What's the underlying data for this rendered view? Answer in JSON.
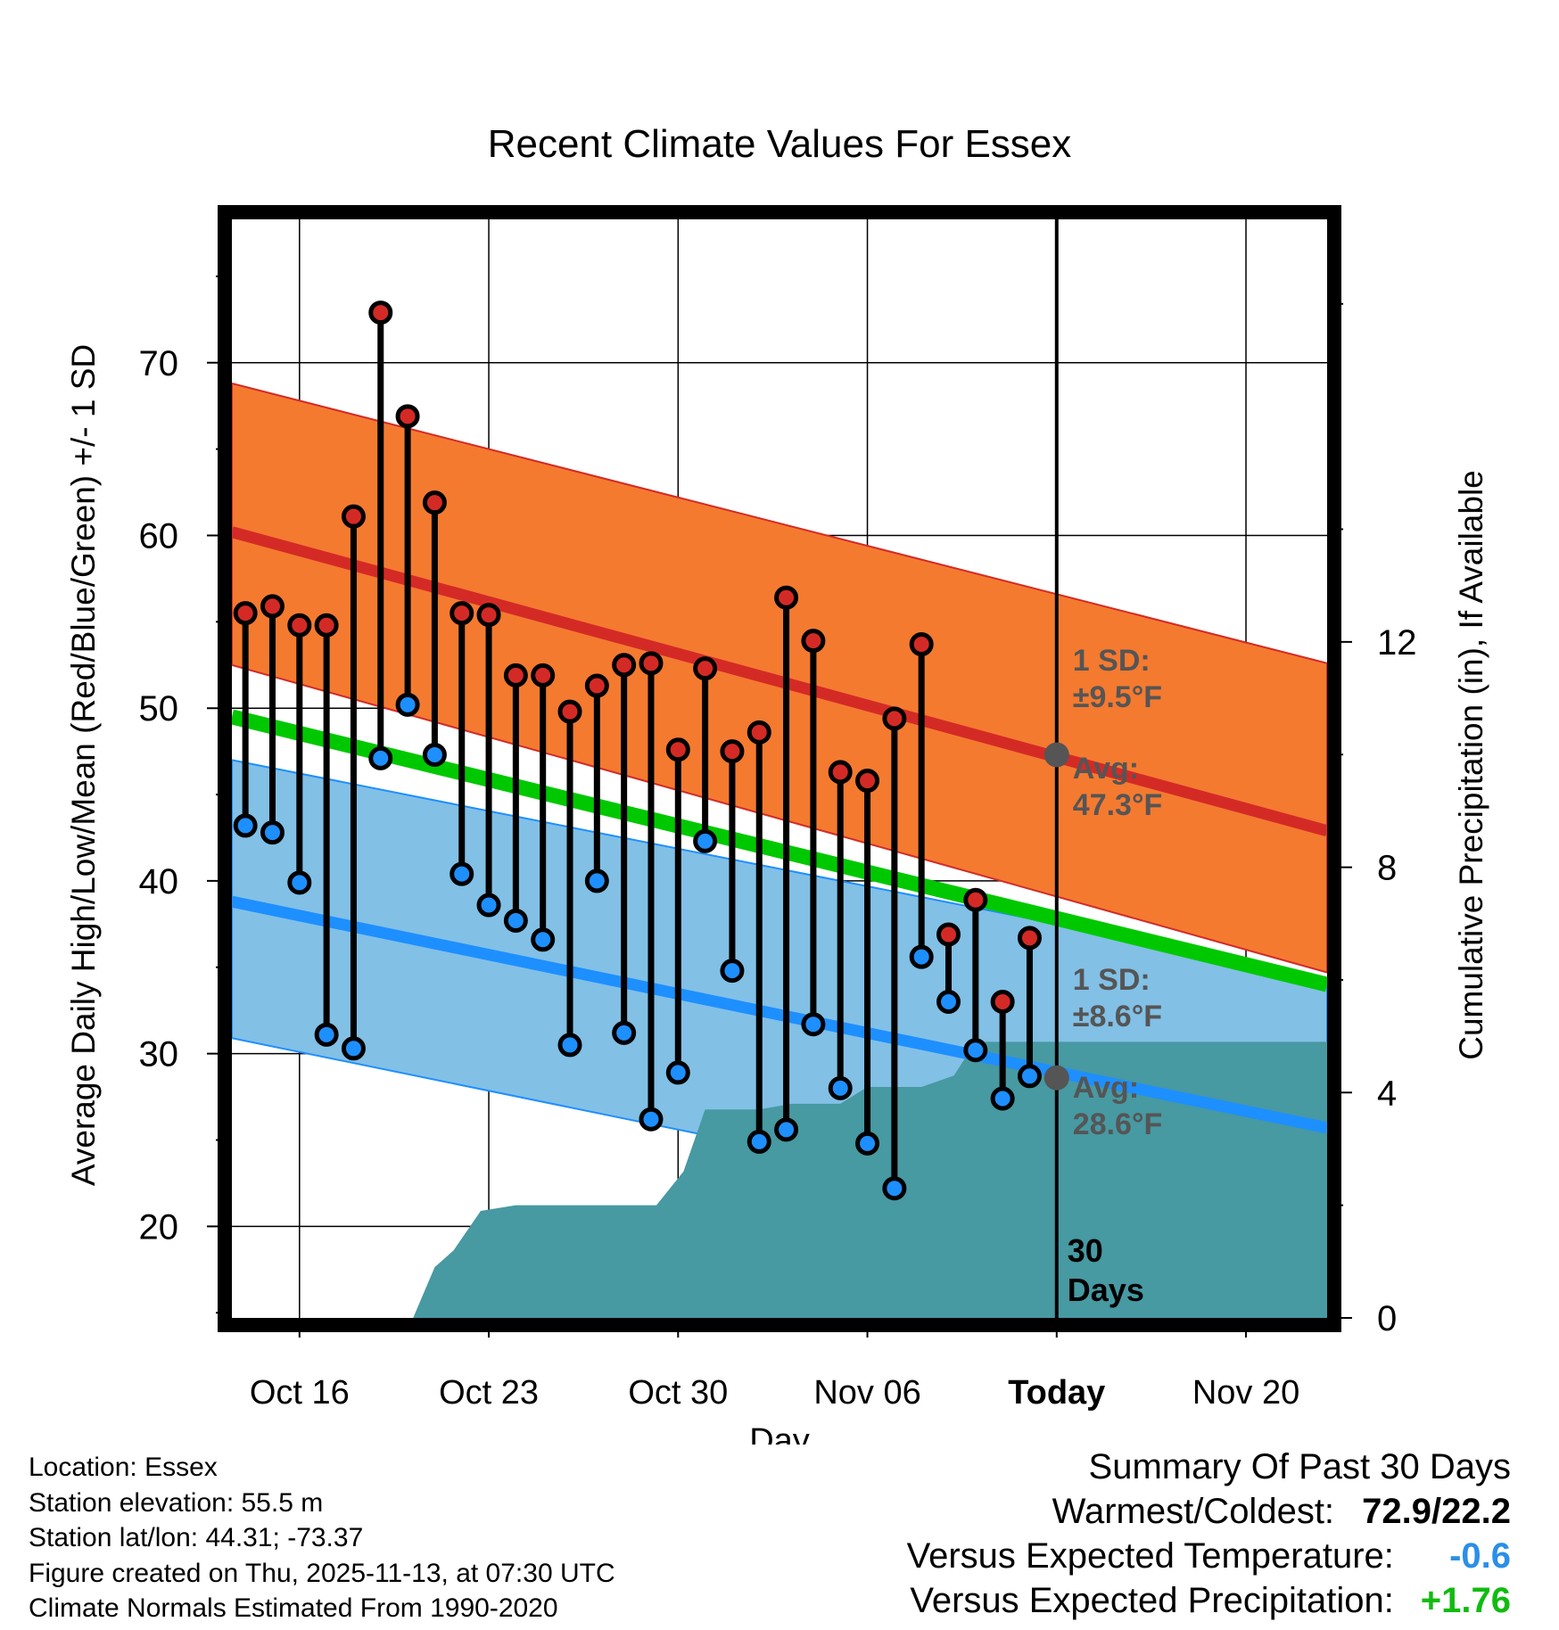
{
  "chart_data": {
    "type": "line",
    "title": "Recent Climate Values For Essex",
    "xlabel": "Day",
    "ylabel_left": "Average Daily High/Low/Mean (Red/Blue/Green) +/- 1 SD",
    "ylabel_right": "Cumulative Precipitation (in), If Available",
    "x_range_days": [
      -29.5,
      11
    ],
    "ylim_left": [
      14.7,
      78.3
    ],
    "ylim_right": [
      0,
      19.5
    ],
    "x_ticks": [
      {
        "day": -27,
        "label": "Oct 16"
      },
      {
        "day": -20,
        "label": "Oct 23"
      },
      {
        "day": -13,
        "label": "Oct 30"
      },
      {
        "day": -6,
        "label": "Nov 06"
      },
      {
        "day": 1,
        "label": "Today"
      },
      {
        "day": 8,
        "label": "Nov 20"
      }
    ],
    "y_ticks_left": [
      20,
      30,
      40,
      50,
      60,
      70
    ],
    "y_ticks_right": [
      0,
      4,
      8,
      12
    ],
    "normal_high": {
      "start": 60.2,
      "end": 42.9
    },
    "high_band": {
      "upper_start": 68.8,
      "upper_end": 52.6,
      "lower_start": 52.5,
      "lower_end": 34.7
    },
    "normal_low": {
      "start": 38.8,
      "end": 25.7
    },
    "low_band": {
      "upper_start": 47.0,
      "upper_end": 34.4,
      "lower_start": 30.9,
      "lower_end": 17.9
    },
    "normal_mean": {
      "start": 49.5,
      "end": 34.0
    },
    "today_day": 1,
    "period_label": "30\nDays",
    "high_annotation": {
      "sd": "1 SD:",
      "sd_value": "±9.5°F",
      "avg": "Avg:",
      "avg_value": "47.3°F",
      "avg_num": 47.3
    },
    "low_annotation": {
      "sd": "1 SD:",
      "sd_value": "±8.6°F",
      "avg": "Avg:",
      "avg_value": "28.6°F",
      "avg_num": 28.6
    },
    "highs": [
      55.5,
      55.9,
      54.8,
      54.8,
      61.1,
      72.9,
      66.9,
      61.9,
      55.5,
      55.4,
      51.9,
      51.9,
      49.8,
      51.3,
      52.5,
      52.6,
      47.6,
      52.3,
      47.5,
      48.6,
      56.4,
      53.9,
      46.3,
      45.8,
      49.4,
      53.7,
      36.9,
      38.9,
      33.0,
      36.7
    ],
    "lows": [
      43.2,
      42.8,
      39.9,
      31.1,
      30.3,
      47.1,
      50.2,
      47.3,
      40.4,
      38.6,
      37.7,
      36.6,
      30.5,
      40.0,
      31.2,
      26.2,
      28.9,
      42.3,
      34.8,
      24.9,
      25.6,
      31.7,
      28.0,
      24.8,
      22.2,
      35.6,
      33.0,
      30.2,
      27.4,
      28.7
    ],
    "precip_cumulative": [
      [
        -26.3,
        0
      ],
      [
        -26.3,
        0
      ],
      [
        -22.8,
        0
      ],
      [
        -22.0,
        0.9
      ],
      [
        -21.3,
        1.2
      ],
      [
        -20.3,
        1.9
      ],
      [
        -19.0,
        2.0
      ],
      [
        -16.3,
        2.0
      ],
      [
        -13.8,
        2.0
      ],
      [
        -12.8,
        2.6
      ],
      [
        -12.0,
        3.7
      ],
      [
        -10.0,
        3.7
      ],
      [
        -8.8,
        3.8
      ],
      [
        -7.0,
        3.8
      ],
      [
        -6.0,
        4.1
      ],
      [
        -4.0,
        4.1
      ],
      [
        -2.8,
        4.3
      ],
      [
        -2.0,
        4.9
      ],
      [
        1.0,
        4.9
      ],
      [
        11,
        4.9
      ]
    ]
  },
  "footer": {
    "location": "Location: Essex",
    "elevation": "Station elevation: 55.5 m",
    "latlon": "Station lat/lon: 44.31; -73.37",
    "created": "Figure created on Thu, 2025-11-13, at 07:30 UTC",
    "normals": "Climate Normals Estimated From 1990-2020"
  },
  "summary": {
    "title": "Summary Of Past 30 Days",
    "warmest_label": "Warmest/Coldest:",
    "warmest_value": "72.9/22.2",
    "temp_label": "Versus Expected Temperature:",
    "temp_value": "-0.6",
    "temp_color": "#2b8fe8",
    "precip_label": "Versus Expected Precipitation:",
    "precip_value": "+1.76",
    "precip_color": "#11bb11"
  },
  "colors": {
    "high_band": "#f47a30",
    "high_band_edge": "#d42a26",
    "normal_high": "#d42a26",
    "low_band": "#82c0e6",
    "low_band_edge": "#1e8fff",
    "normal_low": "#1e8fff",
    "normal_mean": "#00c800",
    "precip": "#4799a2",
    "high_dot": "#d42a26",
    "low_dot": "#1e8fff",
    "annotation": "#555555",
    "avg_marker": "#555555"
  }
}
